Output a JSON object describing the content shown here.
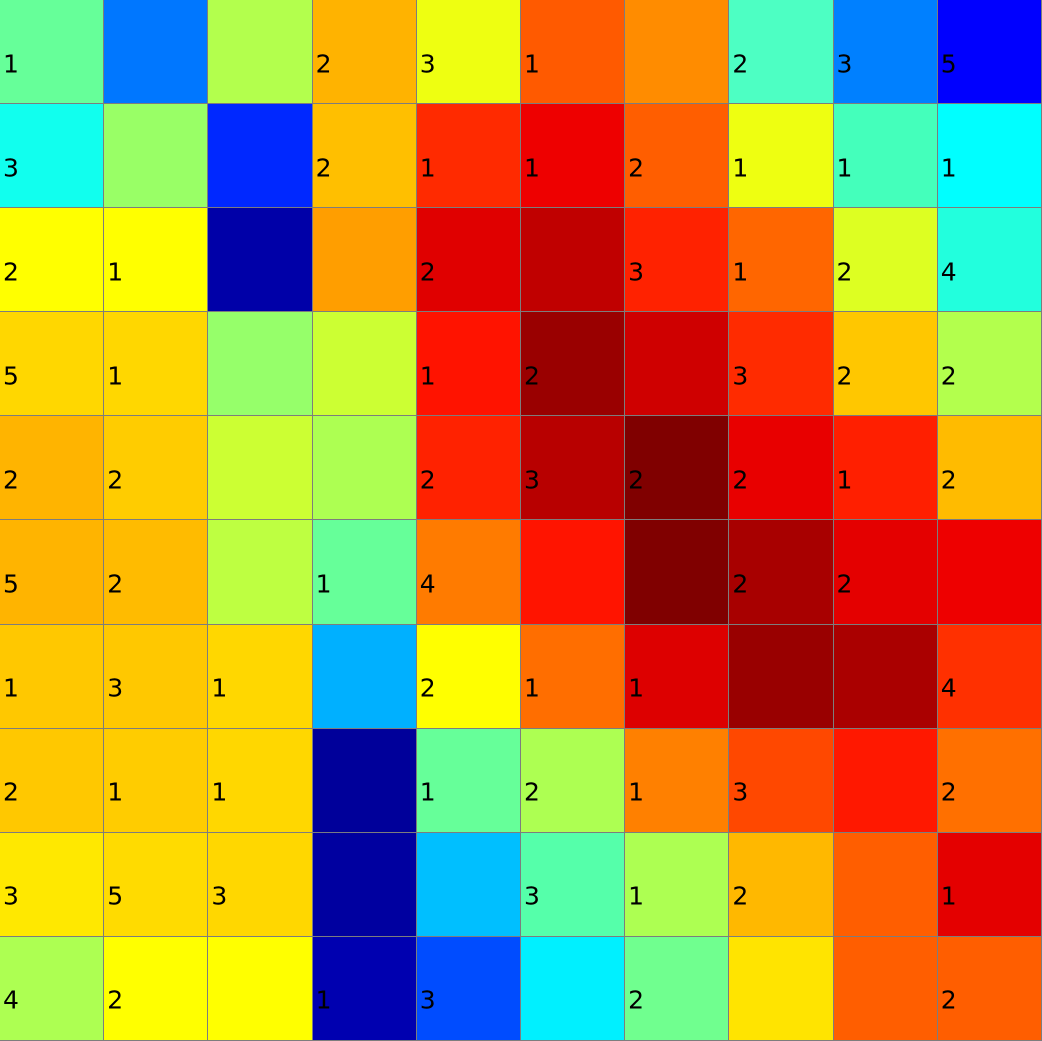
{
  "board": {
    "rows": 10,
    "cols": 10,
    "colors": [
      [
        "#66ff99",
        "#0077ff",
        "#b3ff4d",
        "#ffb300",
        "#eeff11",
        "#ff5a00",
        "#ff8c00",
        "#4dffc3",
        "#0080ff",
        "#0000ff"
      ],
      [
        "#11ffee",
        "#99ff66",
        "#0028ff",
        "#ffbf00",
        "#ff2a00",
        "#ee0000",
        "#ff5e00",
        "#eeff11",
        "#44ffbb",
        "#00ffff"
      ],
      [
        "#ffff00",
        "#ffff00",
        "#0000a8",
        "#ff9e00",
        "#e00000",
        "#c00000",
        "#ff2200",
        "#ff6600",
        "#ddff22",
        "#22ffdd"
      ],
      [
        "#ffd700",
        "#ffd700",
        "#96ff6a",
        "#ccff33",
        "#ff1300",
        "#9a0000",
        "#cf0000",
        "#ff2b00",
        "#ffc700",
        "#b3ff4d"
      ],
      [
        "#ffb400",
        "#ffcc00",
        "#ccff33",
        "#adff52",
        "#ff2200",
        "#b80000",
        "#800000",
        "#e80000",
        "#ff1f00",
        "#ffbb00"
      ],
      [
        "#ffb400",
        "#ffbb00",
        "#beff41",
        "#66ff99",
        "#ff7b00",
        "#ff1400",
        "#800000",
        "#a80000",
        "#e40000",
        "#ee0000"
      ],
      [
        "#ffc800",
        "#ffc800",
        "#ffd700",
        "#00b0ff",
        "#ffff00",
        "#ff6e00",
        "#dd0000",
        "#990000",
        "#aa0000",
        "#ff3000"
      ],
      [
        "#ffc800",
        "#ffcc00",
        "#ffd700",
        "#00009a",
        "#66ff99",
        "#adff52",
        "#ff8000",
        "#ff4800",
        "#ff1800",
        "#ff7000"
      ],
      [
        "#ffe800",
        "#ffdb00",
        "#ffd700",
        "#0000a0",
        "#00bfff",
        "#55ffaa",
        "#adff52",
        "#ffb800",
        "#ff5e00",
        "#e40000"
      ],
      [
        "#adff52",
        "#ffff00",
        "#ffff00",
        "#0000b0",
        "#004cff",
        "#00f0ff",
        "#70ff8f",
        "#ffe400",
        "#ff5e00",
        "#ff5e00"
      ]
    ],
    "numbers": [
      [
        "1",
        "",
        "",
        "2",
        "3",
        "1",
        "",
        "2",
        "3",
        "5"
      ],
      [
        "3",
        "",
        "",
        "2",
        "1",
        "1",
        "2",
        "1",
        "1",
        "1"
      ],
      [
        "2",
        "1",
        "",
        "",
        "2",
        "",
        "3",
        "1",
        "2",
        "4"
      ],
      [
        "5",
        "1",
        "",
        "",
        "1",
        "2",
        "",
        "3",
        "2",
        "2"
      ],
      [
        "2",
        "2",
        "",
        "",
        "2",
        "3",
        "2",
        "2",
        "1",
        "2"
      ],
      [
        "5",
        "2",
        "",
        "1",
        "4",
        "",
        "",
        "2",
        "2",
        ""
      ],
      [
        "1",
        "3",
        "1",
        "",
        "2",
        "1",
        "1",
        "",
        "",
        "4"
      ],
      [
        "2",
        "1",
        "1",
        "",
        "1",
        "2",
        "1",
        "3",
        "",
        "2"
      ],
      [
        "3",
        "5",
        "3",
        "",
        "",
        "3",
        "1",
        "2",
        "",
        "1"
      ],
      [
        "4",
        "2",
        "",
        "1",
        "3",
        "",
        "2",
        "",
        "",
        "2"
      ]
    ]
  }
}
